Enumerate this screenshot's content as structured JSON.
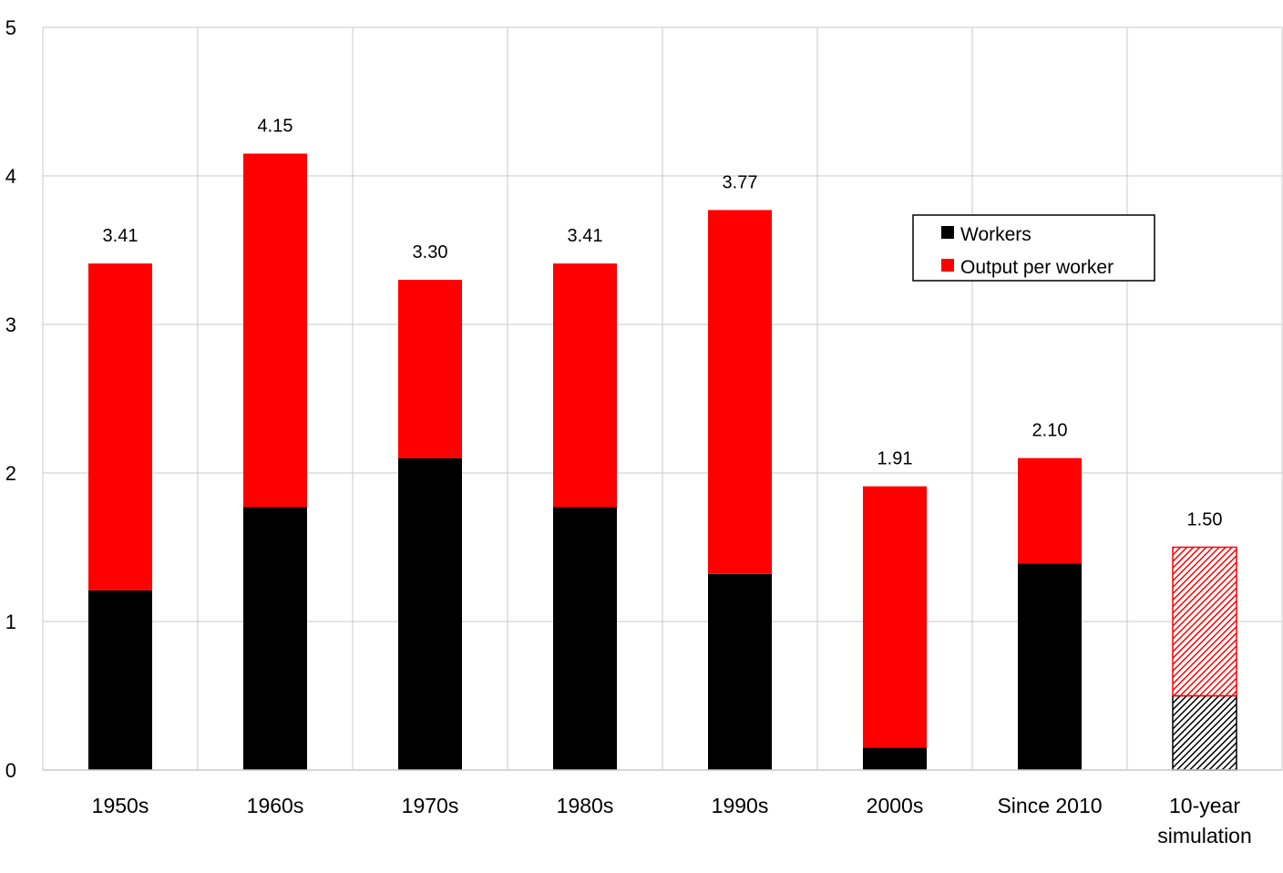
{
  "chart_data": {
    "type": "bar",
    "stacked": true,
    "title": "",
    "xlabel": "",
    "ylabel": "",
    "ylim": [
      0,
      5
    ],
    "yticks": [
      0,
      1,
      2,
      3,
      4,
      5
    ],
    "grid": true,
    "legend_position": "upper-right",
    "categories": [
      [
        "1950s"
      ],
      [
        "1960s"
      ],
      [
        "1970s"
      ],
      [
        "1980s"
      ],
      [
        "1990s"
      ],
      [
        "2000s"
      ],
      [
        "Since 2010"
      ],
      [
        "10-year",
        "simulation"
      ]
    ],
    "series": [
      {
        "name": "Workers",
        "color": "#000000",
        "values": [
          1.21,
          1.77,
          2.1,
          1.77,
          1.32,
          0.15,
          1.39,
          0.5
        ]
      },
      {
        "name": "Output per worker",
        "color": "#ff0000",
        "values": [
          2.2,
          2.38,
          1.2,
          1.64,
          2.45,
          1.76,
          0.71,
          1.0
        ]
      }
    ],
    "totals": [
      "3.41",
      "4.15",
      "3.30",
      "3.41",
      "3.77",
      "1.91",
      "2.10",
      "1.50"
    ],
    "hatched_categories": [
      7
    ],
    "gridline_color": "#c8c8c8"
  }
}
